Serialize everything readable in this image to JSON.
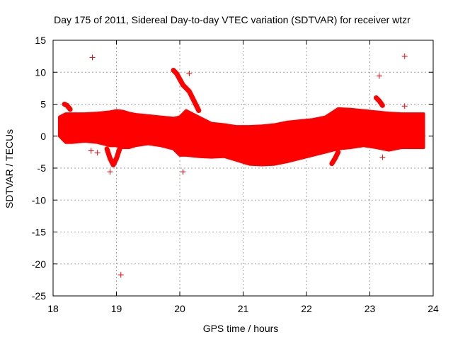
{
  "chart_data": {
    "type": "scatter",
    "title": "Day 175 of 2011, Sidereal Day-to-day VTEC variation (SDTVAR) for receiver wtzr",
    "xlabel": "GPS time / hours",
    "ylabel": "SDTVAR / TECUs",
    "xlim": [
      18,
      24
    ],
    "ylim": [
      -25,
      15
    ],
    "xticks": [
      "18",
      "19",
      "20",
      "21",
      "22",
      "23",
      "24"
    ],
    "yticks": [
      "15",
      "10",
      "5",
      "0",
      "-5",
      "-10",
      "-15",
      "-20",
      "-25"
    ],
    "grid": true,
    "marker": "+",
    "series_color": "#ff0000",
    "band": {
      "x": [
        18.1,
        18.2,
        18.3,
        18.5,
        18.7,
        18.9,
        19.0,
        19.1,
        19.2,
        19.3,
        19.5,
        19.7,
        19.9,
        20.0,
        20.1,
        20.3,
        20.5,
        20.7,
        20.9,
        21.1,
        21.3,
        21.5,
        21.7,
        21.9,
        22.1,
        22.3,
        22.5,
        22.7,
        22.9,
        23.1,
        23.3,
        23.5,
        23.7,
        23.85
      ],
      "upper": [
        3.0,
        3.5,
        3.5,
        3.5,
        3.6,
        3.8,
        4.0,
        3.9,
        3.6,
        3.4,
        3.2,
        3.0,
        2.8,
        3.0,
        4.0,
        3.0,
        2.0,
        1.8,
        1.5,
        1.5,
        1.6,
        1.8,
        2.2,
        2.4,
        2.6,
        3.0,
        4.3,
        4.2,
        4.0,
        3.8,
        3.6,
        3.5,
        3.5,
        3.5
      ],
      "lower": [
        0.0,
        -1.0,
        -1.0,
        -0.8,
        -1.0,
        -1.5,
        -1.5,
        -1.8,
        -1.8,
        -1.5,
        -1.2,
        -1.5,
        -2.0,
        -3.0,
        -3.0,
        -3.2,
        -3.3,
        -3.2,
        -3.8,
        -4.4,
        -4.5,
        -4.4,
        -4.0,
        -3.5,
        -3.0,
        -2.5,
        -2.0,
        -1.8,
        -1.5,
        -1.8,
        -2.2,
        -1.8,
        -1.8,
        -1.8
      ]
    },
    "spikes": [
      {
        "x": [
          19.9,
          19.95,
          20.05,
          20.15,
          20.3
        ],
        "y": [
          10.3,
          9.8,
          8.0,
          7.0,
          4.0
        ]
      },
      {
        "x": [
          18.18,
          18.22,
          18.27
        ],
        "y": [
          5.0,
          4.8,
          4.2
        ]
      },
      {
        "x": [
          23.1,
          23.15,
          23.2
        ],
        "y": [
          6.0,
          5.5,
          4.8
        ]
      }
    ],
    "dips": [
      {
        "x": [
          18.85,
          18.9,
          18.95,
          19.0,
          19.05
        ],
        "y": [
          -2.0,
          -3.5,
          -4.5,
          -3.5,
          -2.0
        ]
      },
      {
        "x": [
          22.4,
          22.45,
          22.5
        ],
        "y": [
          -4.3,
          -3.5,
          -2.5
        ]
      }
    ],
    "points": [
      {
        "x": 18.62,
        "y": 12.3
      },
      {
        "x": 20.15,
        "y": 9.8
      },
      {
        "x": 23.15,
        "y": 9.4
      },
      {
        "x": 23.55,
        "y": 12.5
      },
      {
        "x": 23.55,
        "y": 4.7
      },
      {
        "x": 18.6,
        "y": -2.3
      },
      {
        "x": 18.7,
        "y": -2.6
      },
      {
        "x": 18.9,
        "y": -5.6
      },
      {
        "x": 20.05,
        "y": -5.6
      },
      {
        "x": 23.2,
        "y": -3.3
      },
      {
        "x": 19.07,
        "y": -21.7
      }
    ]
  }
}
